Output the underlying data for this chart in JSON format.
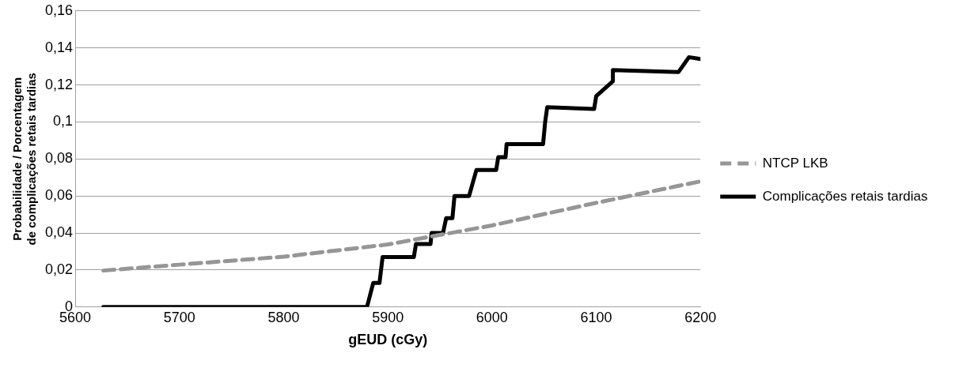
{
  "chart_data": {
    "type": "line",
    "xlabel": "gEUD (cGy)",
    "ylabel": "Probabilidade / Porcentagem de complicações retais tardias",
    "xlim": [
      5600,
      6200
    ],
    "xticks": [
      5600,
      5700,
      5800,
      5900,
      6000,
      6100,
      6200
    ],
    "ylim": [
      0,
      0.16
    ],
    "yticks": [
      {
        "value": 0,
        "label": "0"
      },
      {
        "value": 0.02,
        "label": "0,02"
      },
      {
        "value": 0.04,
        "label": "0,04"
      },
      {
        "value": 0.06,
        "label": "0,06"
      },
      {
        "value": 0.08,
        "label": "0,08"
      },
      {
        "value": 0.1,
        "label": "0,1"
      },
      {
        "value": 0.12,
        "label": "0,12"
      },
      {
        "value": 0.14,
        "label": "0,14"
      },
      {
        "value": 0.16,
        "label": "0,16"
      }
    ],
    "grid": "y",
    "legend": "right",
    "marker": "none",
    "series": [
      {
        "name": "NTCP LKB",
        "color": "#969696",
        "line_style": "dashed",
        "x": [
          5627,
          5700,
          5800,
          5900,
          6000,
          6100,
          6200
        ],
        "values": [
          0.0197,
          0.0229,
          0.0272,
          0.0338,
          0.0441,
          0.0563,
          0.0679
        ]
      },
      {
        "name": "Complicações retais tardias",
        "color": "#000000",
        "line_style": "solid",
        "x": [
          5627,
          5880,
          5886,
          5892,
          5895,
          5925,
          5927,
          5941,
          5942,
          5953,
          5956,
          5962,
          5964,
          5978,
          5982,
          5985,
          6004,
          6006,
          6013,
          6014,
          6049,
          6051,
          6053,
          6098,
          6100,
          6116,
          6116,
          6179,
          6189,
          6200
        ],
        "values": [
          0,
          0,
          0.013,
          0.013,
          0.027,
          0.027,
          0.034,
          0.034,
          0.04,
          0.04,
          0.048,
          0.048,
          0.06,
          0.06,
          0.068,
          0.074,
          0.074,
          0.081,
          0.081,
          0.088,
          0.088,
          0.1,
          0.108,
          0.107,
          0.114,
          0.122,
          0.128,
          0.127,
          0.135,
          0.134
        ]
      }
    ]
  }
}
